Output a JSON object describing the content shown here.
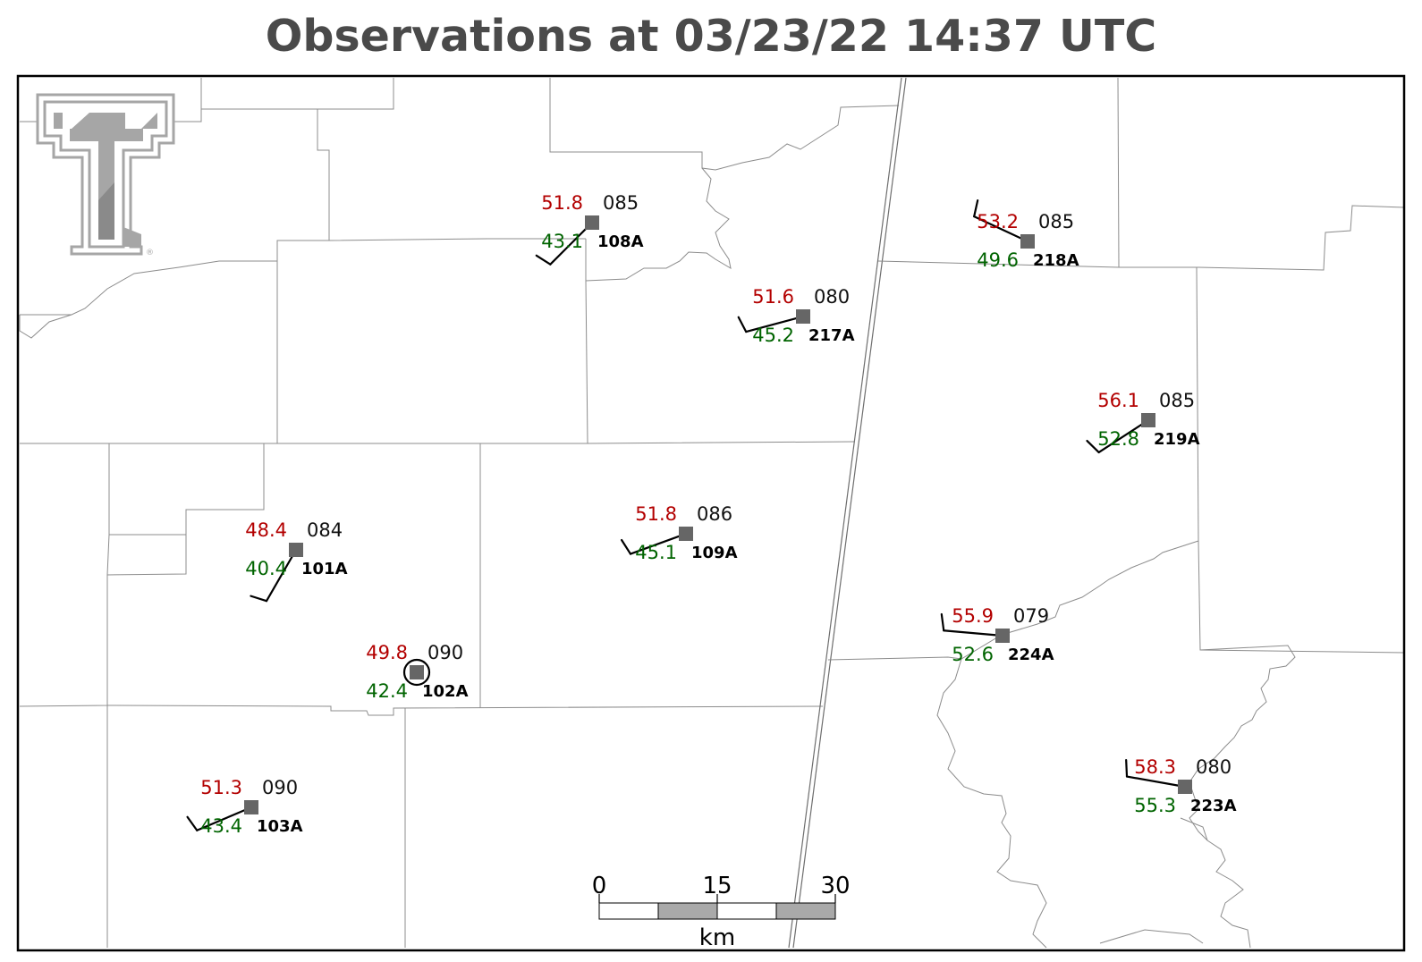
{
  "title": "Observations at 03/23/22 14:37 UTC",
  "colors": {
    "temperature": "#b30000",
    "dewpoint": "#006400",
    "station_marker": "#666666",
    "county_lines": "#8c8c8c",
    "logo": "#a6a6a6"
  },
  "icons": {
    "logo": "texas-tech-double-t-logo",
    "station": "square-station-marker",
    "calm": "calm-wind-circle"
  },
  "logo_mark": "®",
  "scale_bar": {
    "labels": [
      "0",
      "15",
      "30"
    ],
    "unit": "km"
  },
  "stations": [
    {
      "id": "108A",
      "temp": "51.8",
      "dew": "43.1",
      "pressure": "085",
      "wind_dir": 225,
      "barbs": 1,
      "calm": false
    },
    {
      "id": "217A",
      "temp": "51.6",
      "dew": "45.2",
      "pressure": "080",
      "wind_dir": 255,
      "barbs": 1,
      "calm": false
    },
    {
      "id": "218A",
      "temp": "53.2",
      "dew": "49.6",
      "pressure": "085",
      "wind_dir": 295,
      "barbs": 1,
      "calm": false
    },
    {
      "id": "219A",
      "temp": "56.1",
      "dew": "52.8",
      "pressure": "085",
      "wind_dir": 237,
      "barbs": 1,
      "calm": false
    },
    {
      "id": "101A",
      "temp": "48.4",
      "dew": "40.4",
      "pressure": "084",
      "wind_dir": 210,
      "barbs": 1,
      "calm": false
    },
    {
      "id": "109A",
      "temp": "51.8",
      "dew": "45.1",
      "pressure": "086",
      "wind_dir": 250,
      "barbs": 1,
      "calm": false
    },
    {
      "id": "224A",
      "temp": "55.9",
      "dew": "52.6",
      "pressure": "079",
      "wind_dir": 275,
      "barbs": 1,
      "calm": false
    },
    {
      "id": "102A",
      "temp": "49.8",
      "dew": "42.4",
      "pressure": "090",
      "wind_dir": 0,
      "barbs": 0,
      "calm": true
    },
    {
      "id": "103A",
      "temp": "51.3",
      "dew": "43.4",
      "pressure": "090",
      "wind_dir": 247,
      "barbs": 1,
      "calm": false
    },
    {
      "id": "223A",
      "temp": "58.3",
      "dew": "55.3",
      "pressure": "080",
      "wind_dir": 280,
      "barbs": 1,
      "calm": false
    }
  ]
}
